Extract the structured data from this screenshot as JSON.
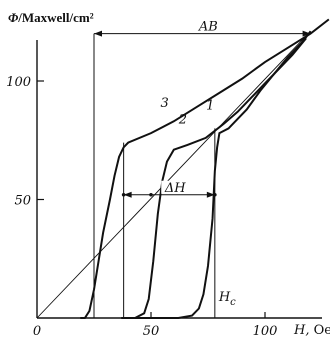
{
  "chart_data": {
    "type": "line",
    "title": "",
    "y_axis": {
      "symbol": "Φ",
      "unit_text": "/Maxwell/cm²",
      "ticks": [
        {
          "value": 50,
          "label": "50"
        },
        {
          "value": 100,
          "label": "100"
        }
      ],
      "range": [
        0,
        130
      ]
    },
    "x_axis": {
      "symbol": "H,",
      "unit_text": "Oe",
      "origin_label": "0",
      "ticks": [
        {
          "value": 50,
          "label": "50"
        },
        {
          "value": 100,
          "label": "100"
        }
      ],
      "range": [
        0,
        125
      ]
    },
    "curves": [
      {
        "label": "1",
        "points": [
          [
            37,
            0
          ],
          [
            62,
            0
          ],
          [
            68,
            1
          ],
          [
            71,
            4
          ],
          [
            73,
            10
          ],
          [
            75,
            22
          ],
          [
            77,
            42
          ],
          [
            78,
            62
          ],
          [
            79,
            72
          ],
          [
            80,
            78
          ],
          [
            84,
            80
          ],
          [
            88,
            84
          ],
          [
            92,
            88
          ],
          [
            98,
            96
          ],
          [
            104,
            103
          ],
          [
            110,
            110
          ],
          [
            116,
            116
          ],
          [
            120,
            121
          ]
        ]
      },
      {
        "label": "2",
        "points": [
          [
            37,
            0
          ],
          [
            43,
            0
          ],
          [
            47,
            2
          ],
          [
            49,
            8
          ],
          [
            51,
            24
          ],
          [
            53,
            44
          ],
          [
            55,
            58
          ],
          [
            57,
            66
          ],
          [
            60,
            71
          ],
          [
            66,
            73
          ],
          [
            74,
            76
          ],
          [
            82,
            82
          ],
          [
            88,
            87
          ],
          [
            94,
            93
          ],
          [
            100,
            99
          ],
          [
            106,
            105
          ],
          [
            112,
            111
          ],
          [
            118,
            118
          ]
        ]
      },
      {
        "label": "3",
        "points": [
          [
            19,
            0
          ],
          [
            21,
            0
          ],
          [
            23,
            3
          ],
          [
            25,
            12
          ],
          [
            27,
            24
          ],
          [
            29,
            36
          ],
          [
            32,
            50
          ],
          [
            34,
            60
          ],
          [
            36,
            68
          ],
          [
            38,
            72
          ],
          [
            40,
            74
          ],
          [
            50,
            78
          ],
          [
            60,
            83
          ],
          [
            70,
            89
          ],
          [
            80,
            95
          ],
          [
            90,
            101
          ],
          [
            100,
            108
          ],
          [
            110,
            114
          ],
          [
            120,
            120
          ],
          [
            128,
            126
          ]
        ]
      }
    ],
    "diagonal_line": {
      "from": [
        0,
        0
      ],
      "to": [
        120,
        121
      ]
    },
    "annotations": [
      {
        "text": "AB",
        "type": "double-arrow",
        "y": 120,
        "x_from": 25,
        "x_to": 120
      },
      {
        "text": "ΔH",
        "type": "double-arrow",
        "y": 52,
        "x_from": 38,
        "x_to": 78
      },
      {
        "text": "H",
        "subscript": "c",
        "type": "vertical-guide",
        "x": 78,
        "y_top": 80
      }
    ],
    "vertical_guides": [
      {
        "x": 25,
        "y_from": 0,
        "y_to": 120
      },
      {
        "x": 38,
        "y_from": 0,
        "y_to": 74
      },
      {
        "x": 78,
        "y_from": 0,
        "y_to": 80
      }
    ],
    "grid": false,
    "legend": "none"
  }
}
